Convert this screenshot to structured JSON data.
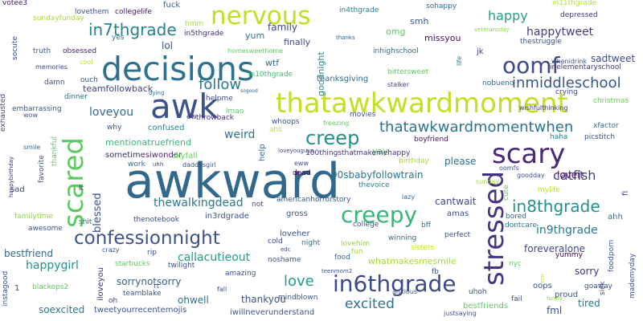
{
  "words": [
    {
      "text": "awkward",
      "color": "#31688e"
    },
    {
      "text": "decisions",
      "color": "#2c728e"
    },
    {
      "text": "thatawkwardmoment",
      "color": "#c2df23"
    },
    {
      "text": "awk",
      "color": "#3b528b"
    },
    {
      "text": "nervous",
      "color": "#c2df23"
    },
    {
      "text": "scary",
      "color": "#482878"
    },
    {
      "text": "scared",
      "color": "#5ec962"
    },
    {
      "text": "stressed",
      "color": "#46337e"
    },
    {
      "text": "confessionnight",
      "color": "#3b528b"
    },
    {
      "text": "in6thgrade",
      "color": "#3e4989"
    },
    {
      "text": "creepy",
      "color": "#35b779"
    },
    {
      "text": "creep",
      "color": "#21918c"
    },
    {
      "text": "thatawkwardmomentwhen",
      "color": "#2c728e"
    },
    {
      "text": "oomf",
      "color": "#3e4989"
    },
    {
      "text": "in7thgrade",
      "color": "#26828e"
    },
    {
      "text": "inmiddleschool",
      "color": "#39568c"
    },
    {
      "text": "in8thgrade",
      "color": "#21918c"
    },
    {
      "text": "happy",
      "color": "#1f9e89"
    },
    {
      "text": "follow",
      "color": "#2a788e"
    },
    {
      "text": "loveyou",
      "color": "#31688e"
    },
    {
      "text": "love",
      "color": "#1f9e89"
    },
    {
      "text": "excited",
      "color": "#2c728e"
    },
    {
      "text": "catfish",
      "color": "#433e85"
    },
    {
      "text": "in9thgrade",
      "color": "#2a788e"
    },
    {
      "text": "thewalkingdead",
      "color": "#2a788e"
    },
    {
      "text": "callacutieout",
      "color": "#1f9e89"
    },
    {
      "text": "happygirl",
      "color": "#21918c"
    },
    {
      "text": "happytweet",
      "color": "#423f85"
    },
    {
      "text": "weird",
      "color": "#2c728e"
    },
    {
      "text": "sometimesiwonder",
      "color": "#482878"
    },
    {
      "text": "mentionatruefriend",
      "color": "#35b779"
    },
    {
      "text": "teamfollowback",
      "color": "#414487"
    },
    {
      "text": "90sbabyfollowtrain",
      "color": "#2a788e"
    },
    {
      "text": "please",
      "color": "#2c728e"
    },
    {
      "text": "blessed",
      "color": "#3b528b"
    },
    {
      "text": "cantwait",
      "color": "#3e4989"
    },
    {
      "text": "sadtweet",
      "color": "#3e4989"
    },
    {
      "text": "loveit",
      "color": "#471365"
    },
    {
      "text": "thankyou",
      "color": "#3b528b"
    },
    {
      "text": "sorrynotsorry",
      "color": "#33638d"
    },
    {
      "text": "ohwell",
      "color": "#2c728e"
    },
    {
      "text": "whatmakesmesmile",
      "color": "#a5db36"
    },
    {
      "text": "foreveralone",
      "color": "#404688"
    },
    {
      "text": "family",
      "color": "#3e4989"
    },
    {
      "text": "sorry",
      "color": "#46337e"
    },
    {
      "text": "lol",
      "color": "#3b528b"
    },
    {
      "text": "yum",
      "color": "#2c728e"
    },
    {
      "text": "smh",
      "color": "#39568c"
    },
    {
      "text": "missyou",
      "color": "#481668"
    },
    {
      "text": "omg",
      "color": "#5ec962"
    },
    {
      "text": "finally",
      "color": "#3e4989"
    },
    {
      "text": "bestfriend",
      "color": "#31688e"
    },
    {
      "text": "goodnight",
      "color": "#23898e"
    },
    {
      "text": "thanksgiving",
      "color": "#2e6e8e"
    },
    {
      "text": "wtf",
      "color": "#2e6e8e"
    },
    {
      "text": "in10thgrade",
      "color": "#3dbc74"
    },
    {
      "text": "in5thgrade",
      "color": "#472d7b"
    },
    {
      "text": "in4thgrade",
      "color": "#26828e"
    },
    {
      "text": "in11thgrade",
      "color": "#b5de2b"
    },
    {
      "text": "collegelife",
      "color": "#48186a"
    },
    {
      "text": "fuck",
      "color": "#33638d"
    },
    {
      "text": "lovethem",
      "color": "#3b528b"
    },
    {
      "text": "sundayfunday",
      "color": "#a5db36"
    },
    {
      "text": "votee3",
      "color": "#481668"
    },
    {
      "text": "hmm",
      "color": "#a5db36"
    },
    {
      "text": "sohappy",
      "color": "#31688e"
    },
    {
      "text": "depressed",
      "color": "#453781"
    },
    {
      "text": "thestruggle",
      "color": "#3b528b"
    },
    {
      "text": "veteransday",
      "color": "#8fd744"
    },
    {
      "text": "thanks",
      "color": "#32648e"
    },
    {
      "text": "yes",
      "color": "#2c728e"
    },
    {
      "text": "socute",
      "color": "#3e4989"
    },
    {
      "text": "truth",
      "color": "#39568c"
    },
    {
      "text": "obsessed",
      "color": "#482878"
    },
    {
      "text": "homesweethome",
      "color": "#5ec962"
    },
    {
      "text": "inhighschool",
      "color": "#2e6e8e"
    },
    {
      "text": "jk",
      "color": "#453781"
    },
    {
      "text": "life",
      "color": "#26828e"
    },
    {
      "text": "whenidrink",
      "color": "#3b528b"
    },
    {
      "text": "inelementaryschool",
      "color": "#46337e"
    },
    {
      "text": "memories",
      "color": "#3f4788"
    },
    {
      "text": "cool",
      "color": "#c2df23"
    },
    {
      "text": "damn",
      "color": "#3b528b"
    },
    {
      "text": "ouch",
      "color": "#39568c"
    },
    {
      "text": "dinner",
      "color": "#31688e"
    },
    {
      "text": "bittersweet",
      "color": "#5ec962"
    },
    {
      "text": "stalker",
      "color": "#404688"
    },
    {
      "text": "nobueno",
      "color": "#31688e"
    },
    {
      "text": "crying",
      "color": "#404688"
    },
    {
      "text": "wishfulthinking",
      "color": "#46337e"
    },
    {
      "text": "christmas",
      "color": "#6ccd5a"
    },
    {
      "text": "exhausted",
      "color": "#3e4989"
    },
    {
      "text": "embarrassing",
      "color": "#3b528b"
    },
    {
      "text": "wow",
      "color": "#3b528b"
    },
    {
      "text": "helpme",
      "color": "#404688"
    },
    {
      "text": "lmao",
      "color": "#5ec962"
    },
    {
      "text": "throwback",
      "color": "#472d7b"
    },
    {
      "text": "sogood",
      "color": "#33638d"
    },
    {
      "text": "dying",
      "color": "#2e6e8e"
    },
    {
      "text": "confused",
      "color": "#26828e"
    },
    {
      "text": "ew",
      "color": "#46337e"
    },
    {
      "text": "why",
      "color": "#3b528b"
    },
    {
      "text": "whoops",
      "color": "#3b528b"
    },
    {
      "text": "ahs",
      "color": "#b5de2b"
    },
    {
      "text": "freezing",
      "color": "#5ec962"
    },
    {
      "text": "movies",
      "color": "#3b528b"
    },
    {
      "text": "boyfriend",
      "color": "#471365"
    },
    {
      "text": "haha",
      "color": "#26828e"
    },
    {
      "text": "xfactor",
      "color": "#2e6e8e"
    },
    {
      "text": "picstitch",
      "color": "#39568c"
    },
    {
      "text": "happybirthday",
      "color": "#482878"
    },
    {
      "text": "smile",
      "color": "#33638d"
    },
    {
      "text": "favorite",
      "color": "#3b528b"
    },
    {
      "text": "thankful",
      "color": "#5ec962"
    },
    {
      "text": "skyfall",
      "color": "#6ccd5a"
    },
    {
      "text": "daddysgirl",
      "color": "#3b528b"
    },
    {
      "text": "uhh",
      "color": "#3e4989"
    },
    {
      "text": "work",
      "color": "#2e6e8e"
    },
    {
      "text": "help",
      "color": "#2e6e8e"
    },
    {
      "text": "loveyouguys",
      "color": "#404688"
    },
    {
      "text": "dead",
      "color": "#440154"
    },
    {
      "text": "eww",
      "color": "#3b528b"
    },
    {
      "text": "birthday",
      "color": "#a5db36"
    },
    {
      "text": "yay",
      "color": "#5ec962"
    },
    {
      "text": "sunday",
      "color": "#a5db36"
    },
    {
      "text": "oomfs",
      "color": "#3b528b"
    },
    {
      "text": "goodday",
      "color": "#3b528b"
    },
    {
      "text": "cute",
      "color": "#5ec962"
    },
    {
      "text": "mylife",
      "color": "#c2df23"
    },
    {
      "text": "fi",
      "color": "#3e4989"
    },
    {
      "text": "sad",
      "color": "#414487"
    },
    {
      "text": "lt",
      "color": "#433e85"
    },
    {
      "text": "not",
      "color": "#3b528b"
    },
    {
      "text": "thevoice",
      "color": "#26828e"
    },
    {
      "text": "lazy",
      "color": "#31688e"
    },
    {
      "text": "100thingsthatmakemehappy",
      "color": "#46337e"
    },
    {
      "text": "americanhorrorstory",
      "color": "#39568c"
    },
    {
      "text": "familytime",
      "color": "#8fd744"
    },
    {
      "text": "shit",
      "color": "#2c728e"
    },
    {
      "text": "thenotebook",
      "color": "#3e4989"
    },
    {
      "text": "in3rdgrade",
      "color": "#3b528b"
    },
    {
      "text": "gross",
      "color": "#39568c"
    },
    {
      "text": "amas",
      "color": "#3e4989"
    },
    {
      "text": "bored",
      "color": "#31688e"
    },
    {
      "text": "ahh",
      "color": "#2c728e"
    },
    {
      "text": "awesome",
      "color": "#3b528b"
    },
    {
      "text": "college",
      "color": "#3b528b"
    },
    {
      "text": "bff",
      "color": "#2e6e8e"
    },
    {
      "text": "dontcare",
      "color": "#2a788e"
    },
    {
      "text": "loveher",
      "color": "#3b528b"
    },
    {
      "text": "cold",
      "color": "#3e4989"
    },
    {
      "text": "night",
      "color": "#2e6e8e"
    },
    {
      "text": "lovehim",
      "color": "#8fd744"
    },
    {
      "text": "winning",
      "color": "#2c728e"
    },
    {
      "text": "perfect",
      "color": "#3b528b"
    },
    {
      "text": "sisters",
      "color": "#c2df23"
    },
    {
      "text": "edc",
      "color": "#3e4989"
    },
    {
      "text": "fun",
      "color": "#a5db36"
    },
    {
      "text": "yummy",
      "color": "#440154"
    },
    {
      "text": "rip",
      "color": "#3b528b"
    },
    {
      "text": "noshame",
      "color": "#3b528b"
    },
    {
      "text": "food",
      "color": "#2e6e8e"
    },
    {
      "text": "foodporn",
      "color": "#3b528b"
    },
    {
      "text": "nyc",
      "color": "#5ec962"
    },
    {
      "text": "crazy",
      "color": "#3b528b"
    },
    {
      "text": "starbucks",
      "color": "#5ec962"
    },
    {
      "text": "twilight",
      "color": "#3b528b"
    },
    {
      "text": "instagood",
      "color": "#3b528b"
    },
    {
      "text": "amazing",
      "color": "#3b528b"
    },
    {
      "text": "teenmom2",
      "color": "#3b528b"
    },
    {
      "text": "fb",
      "color": "#3b528b"
    },
    {
      "text": "iloveyou",
      "color": "#46337e"
    },
    {
      "text": "rt",
      "color": "#3b528b"
    },
    {
      "text": "oops",
      "color": "#3b528b"
    },
    {
      "text": "mm",
      "color": "#c2df23"
    },
    {
      "text": "sick",
      "color": "#433e85"
    },
    {
      "text": "mademyday",
      "color": "#3b528b"
    },
    {
      "text": "blackops2",
      "color": "#5ec962"
    },
    {
      "text": "teamblake",
      "color": "#3b528b"
    },
    {
      "text": "goaway",
      "color": "#3b528b"
    },
    {
      "text": "oh",
      "color": "#3b528b"
    },
    {
      "text": "fall",
      "color": "#3b528b"
    },
    {
      "text": "mindblown",
      "color": "#3b528b"
    },
    {
      "text": "uhoh",
      "color": "#3b528b"
    },
    {
      "text": "funny",
      "color": "#8fd744"
    },
    {
      "text": "proud",
      "color": "#3b528b"
    },
    {
      "text": "tired",
      "color": "#2a788e"
    },
    {
      "text": "fail",
      "color": "#3b528b"
    },
    {
      "text": "anxious",
      "color": "#3b528b"
    },
    {
      "text": "soexcited",
      "color": "#2a788e"
    },
    {
      "text": "tweetyourrecentemojis",
      "color": "#3b528b"
    },
    {
      "text": "iwillneverunderstand",
      "color": "#3b528b"
    },
    {
      "text": "bestfriends",
      "color": "#5ec962"
    },
    {
      "text": "justsaying",
      "color": "#3b528b"
    },
    {
      "text": "fml",
      "color": "#3b528b"
    },
    {
      "text": "1",
      "color": "#3b528b"
    }
  ]
}
